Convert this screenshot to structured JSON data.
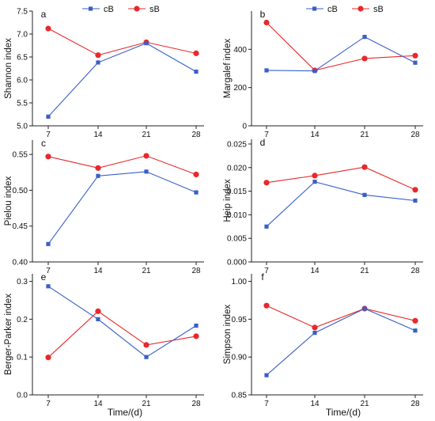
{
  "legend": {
    "series": [
      "cB",
      "sB"
    ]
  },
  "colors": {
    "cB": "#3a5fc8",
    "sB": "#e8282b",
    "axis": "#222222"
  },
  "xlabel": "Time/(d)",
  "chart_data": [
    {
      "type": "line",
      "panel": "a",
      "ylabel": "Shannon index",
      "x": [
        7,
        14,
        21,
        28
      ],
      "xticks": [
        "7",
        "14",
        "21",
        "28"
      ],
      "ylim": [
        5.0,
        7.5
      ],
      "yticks": [
        5.0,
        5.5,
        6.0,
        6.5,
        7.0,
        7.5
      ],
      "yticklabels": [
        "5.0",
        "5.5",
        "6.0",
        "6.5",
        "7.0",
        "7.5"
      ],
      "series": [
        {
          "name": "cB",
          "values": [
            5.2,
            6.38,
            6.8,
            6.18
          ]
        },
        {
          "name": "sB",
          "values": [
            7.12,
            6.54,
            6.82,
            6.58
          ]
        }
      ]
    },
    {
      "type": "line",
      "panel": "b",
      "ylabel": "Margalef index",
      "x": [
        7,
        14,
        21,
        28
      ],
      "xticks": [
        "7",
        "14",
        "21",
        "28"
      ],
      "ylim": [
        0,
        600
      ],
      "yticks": [
        0,
        200,
        400
      ],
      "yticklabels": [
        "0",
        "200",
        "400"
      ],
      "series": [
        {
          "name": "cB",
          "values": [
            290,
            287,
            465,
            330
          ]
        },
        {
          "name": "sB",
          "values": [
            540,
            290,
            352,
            367
          ]
        }
      ]
    },
    {
      "type": "line",
      "panel": "c",
      "ylabel": "Pielou index",
      "x": [
        7,
        14,
        21,
        28
      ],
      "xticks": [
        "7",
        "14",
        "21",
        "28"
      ],
      "ylim": [
        0.4,
        0.57
      ],
      "yticks": [
        0.4,
        0.45,
        0.5,
        0.55
      ],
      "yticklabels": [
        "0.40",
        "0.45",
        "0.50",
        "0.55"
      ],
      "series": [
        {
          "name": "cB",
          "values": [
            0.425,
            0.52,
            0.526,
            0.497
          ]
        },
        {
          "name": "sB",
          "values": [
            0.547,
            0.531,
            0.548,
            0.522
          ]
        }
      ]
    },
    {
      "type": "line",
      "panel": "d",
      "ylabel": "Heip index",
      "x": [
        7,
        14,
        21,
        28
      ],
      "xticks": [
        "7",
        "14",
        "21",
        "28"
      ],
      "ylim": [
        0,
        0.026
      ],
      "yticks": [
        0,
        0.005,
        0.01,
        0.015,
        0.02,
        0.025
      ],
      "yticklabels": [
        "0.000",
        "0.005",
        "0.010",
        "0.015",
        "0.020",
        "0.025"
      ],
      "series": [
        {
          "name": "cB",
          "values": [
            0.0075,
            0.017,
            0.0142,
            0.013
          ]
        },
        {
          "name": "sB",
          "values": [
            0.0168,
            0.0183,
            0.0201,
            0.0153
          ]
        }
      ]
    },
    {
      "type": "line",
      "panel": "e",
      "ylabel": "Berger-Parker index",
      "x": [
        7,
        14,
        21,
        28
      ],
      "xticks": [
        "7",
        "14",
        "21",
        "28"
      ],
      "ylim": [
        0,
        0.32
      ],
      "yticks": [
        0,
        0.1,
        0.2,
        0.3
      ],
      "yticklabels": [
        "0.0",
        "0.1",
        "0.2",
        "0.3"
      ],
      "series": [
        {
          "name": "cB",
          "values": [
            0.287,
            0.2,
            0.1,
            0.183
          ]
        },
        {
          "name": "sB",
          "values": [
            0.099,
            0.221,
            0.132,
            0.155
          ]
        }
      ]
    },
    {
      "type": "line",
      "panel": "f",
      "ylabel": "Simpson index",
      "x": [
        7,
        14,
        21,
        28
      ],
      "xticks": [
        "7",
        "14",
        "21",
        "28"
      ],
      "ylim": [
        0.85,
        1.01
      ],
      "yticks": [
        0.85,
        0.9,
        0.95,
        1.0
      ],
      "yticklabels": [
        "0.85",
        "0.90",
        "0.95",
        "1.00"
      ],
      "series": [
        {
          "name": "cB",
          "values": [
            0.876,
            0.932,
            0.964,
            0.935
          ]
        },
        {
          "name": "sB",
          "values": [
            0.968,
            0.939,
            0.964,
            0.948
          ]
        }
      ]
    }
  ]
}
